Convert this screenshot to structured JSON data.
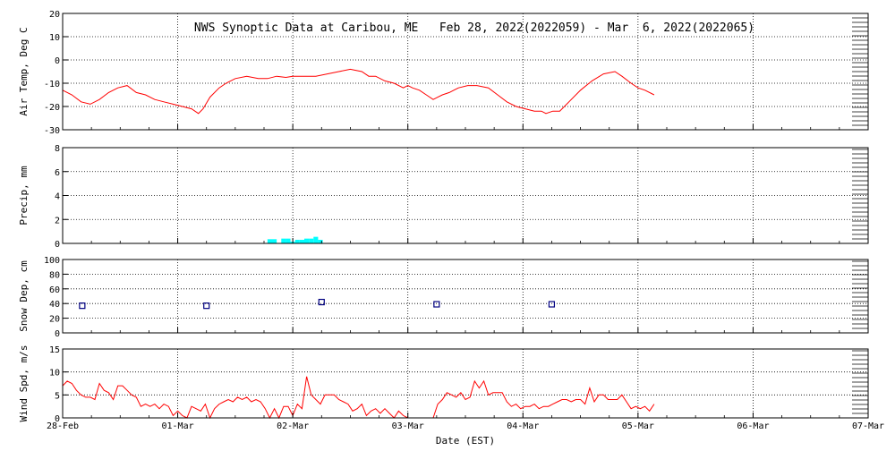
{
  "title": "NWS Synoptic Data at Caribou, ME   Feb 28, 2022(2022059) - Mar  6, 2022(2022065)",
  "x_axis": {
    "label": "Date (EST)",
    "ticks": [
      "28-Feb",
      "01-Mar",
      "02-Mar",
      "03-Mar",
      "04-Mar",
      "05-Mar",
      "06-Mar",
      "07-Mar"
    ],
    "range_days": [
      0,
      7
    ]
  },
  "colors": {
    "temp": "#ff0000",
    "precip": "#00ffff",
    "snow": "#000080",
    "wind": "#ff0000",
    "axis": "#000000"
  },
  "chart_data": [
    {
      "type": "line",
      "ylabel": "Air Temp, Deg C",
      "ylim": [
        -30,
        20
      ],
      "yticks": [
        20,
        10,
        0,
        -10,
        -20,
        -30
      ],
      "x_unit": "days since 28-Feb 00:00",
      "series": [
        {
          "x": [
            0.0,
            0.08,
            0.16,
            0.24,
            0.32,
            0.4,
            0.48,
            0.56,
            0.64,
            0.72,
            0.8,
            0.88,
            0.96,
            1.04,
            1.12,
            1.18,
            1.22,
            1.28,
            1.36,
            1.42,
            1.5,
            1.6,
            1.7,
            1.78,
            1.86,
            1.94,
            2.0,
            2.1,
            2.2,
            2.3,
            2.4,
            2.5,
            2.6,
            2.66,
            2.72,
            2.8,
            2.88,
            2.96,
            3.0,
            3.04,
            3.1,
            3.16,
            3.22,
            3.26,
            3.3,
            3.36,
            3.44,
            3.52,
            3.6,
            3.7,
            3.78,
            3.86,
            3.94,
            4.02,
            4.1,
            4.16,
            4.2,
            4.26,
            4.32,
            4.4,
            4.5,
            4.6,
            4.7,
            4.8,
            4.86,
            4.94,
            5.0,
            5.06,
            5.14
          ],
          "y": [
            -13,
            -15,
            -18,
            -19,
            -17,
            -14,
            -12,
            -11,
            -14,
            -15,
            -17,
            -18,
            -19,
            -20,
            -21,
            -23,
            -21,
            -16,
            -12,
            -10,
            -8,
            -7,
            -8,
            -8,
            -7,
            -7.5,
            -7,
            -7,
            -7,
            -6,
            -5,
            -4,
            -5,
            -7,
            -7,
            -9,
            -10,
            -12,
            -11,
            -12,
            -13,
            -15,
            -17,
            -16,
            -15,
            -14,
            -12,
            -11,
            -11,
            -12,
            -15,
            -18,
            -20,
            -21,
            -22,
            -22,
            -23,
            -22,
            -22,
            -18,
            -13,
            -9,
            -6,
            -5,
            -7,
            -10,
            -12,
            -13,
            -15
          ]
        }
      ]
    },
    {
      "type": "bar",
      "ylabel": "Precip, mm",
      "ylim": [
        0,
        8
      ],
      "yticks": [
        8,
        6,
        4,
        2,
        0
      ],
      "bar_width_days": 0.04,
      "series": [
        {
          "x": [
            1.78,
            1.82,
            1.86,
            1.9,
            1.94,
            1.98,
            2.02,
            2.06,
            2.1,
            2.14,
            2.18,
            2.22
          ],
          "y": [
            0.35,
            0.35,
            0.0,
            0.4,
            0.4,
            0.15,
            0.3,
            0.3,
            0.4,
            0.4,
            0.55,
            0.3
          ]
        }
      ]
    },
    {
      "type": "scatter",
      "ylabel": "Snow Dep, cm",
      "ylim": [
        0,
        100
      ],
      "yticks": [
        100,
        80,
        60,
        40,
        20,
        0
      ],
      "series": [
        {
          "x": [
            0.17,
            1.25,
            2.25,
            3.25,
            4.25
          ],
          "y": [
            37,
            37,
            42,
            39,
            39
          ]
        }
      ]
    },
    {
      "type": "line",
      "ylabel": "Wind Spd, m/s",
      "ylim": [
        0,
        15
      ],
      "yticks": [
        15,
        10,
        5,
        0
      ],
      "series": [
        {
          "x": [
            0.0,
            0.04,
            0.08,
            0.12,
            0.16,
            0.2,
            0.24,
            0.28,
            0.32,
            0.36,
            0.4,
            0.44,
            0.48,
            0.52,
            0.56,
            0.6,
            0.64,
            0.68,
            0.72,
            0.76,
            0.8,
            0.84,
            0.88,
            0.92,
            0.96,
            1.0,
            1.04,
            1.08,
            1.12,
            1.16,
            1.2,
            1.24,
            1.28,
            1.32,
            1.36,
            1.4,
            1.44,
            1.48,
            1.52,
            1.56,
            1.6,
            1.64,
            1.68,
            1.72,
            1.76,
            1.8,
            1.84,
            1.88,
            1.92,
            1.96,
            2.0,
            2.04,
            2.08,
            2.12,
            2.16,
            2.2,
            2.24,
            2.28,
            2.32,
            2.36,
            2.4,
            2.44,
            2.48,
            2.52,
            2.56,
            2.6,
            2.64,
            2.68,
            2.72,
            2.76,
            2.8,
            2.84,
            2.88,
            2.92,
            2.96,
            3.0
          ],
          "y": [
            7,
            8,
            7.5,
            6,
            5,
            4.5,
            4.5,
            4,
            7.5,
            6,
            5.5,
            4,
            7,
            7,
            6,
            5,
            4.5,
            2.5,
            3,
            2.5,
            3,
            2,
            3,
            2.5,
            0.5,
            1.5,
            0.5,
            0,
            2.5,
            2,
            1.5,
            3,
            0,
            2,
            3,
            3.5,
            4,
            3.5,
            4.5,
            4,
            4.5,
            3.5,
            4,
            3.5,
            2,
            0,
            2,
            0,
            2.5,
            2.5,
            0.5,
            3,
            2,
            9,
            5,
            4,
            3,
            5,
            5,
            5,
            4,
            3.5,
            3,
            1.5,
            2,
            3,
            0.5,
            1.5,
            2,
            1,
            2,
            1,
            0,
            1.5,
            0.5,
            0
          ]
        },
        {
          "x": [
            3.22,
            3.26,
            3.3,
            3.34,
            3.38,
            3.42,
            3.46,
            3.5,
            3.54,
            3.58,
            3.62,
            3.66,
            3.7,
            3.74,
            3.78,
            3.82,
            3.86,
            3.9,
            3.94,
            3.98,
            4.02,
            4.06,
            4.1,
            4.14,
            4.18,
            4.22,
            4.26,
            4.3,
            4.34,
            4.38,
            4.42,
            4.46,
            4.5,
            4.54,
            4.58,
            4.62,
            4.66,
            4.7,
            4.74,
            4.78,
            4.82,
            4.86,
            4.9,
            4.94,
            4.98,
            5.02,
            5.06,
            5.1,
            5.14
          ],
          "y": [
            0,
            3,
            4,
            5.5,
            5,
            4.5,
            5.5,
            4,
            4.5,
            8,
            6.5,
            8,
            5,
            5.5,
            5.5,
            5.5,
            3.5,
            2.5,
            3,
            2,
            2.5,
            2.5,
            3,
            2,
            2.5,
            2.5,
            3,
            3.5,
            4,
            4,
            3.5,
            4,
            4,
            3,
            6.5,
            3.5,
            5,
            5,
            4,
            4,
            4,
            5,
            3.5,
            2,
            2.5,
            2,
            2.5,
            1.5,
            3
          ]
        }
      ]
    }
  ]
}
